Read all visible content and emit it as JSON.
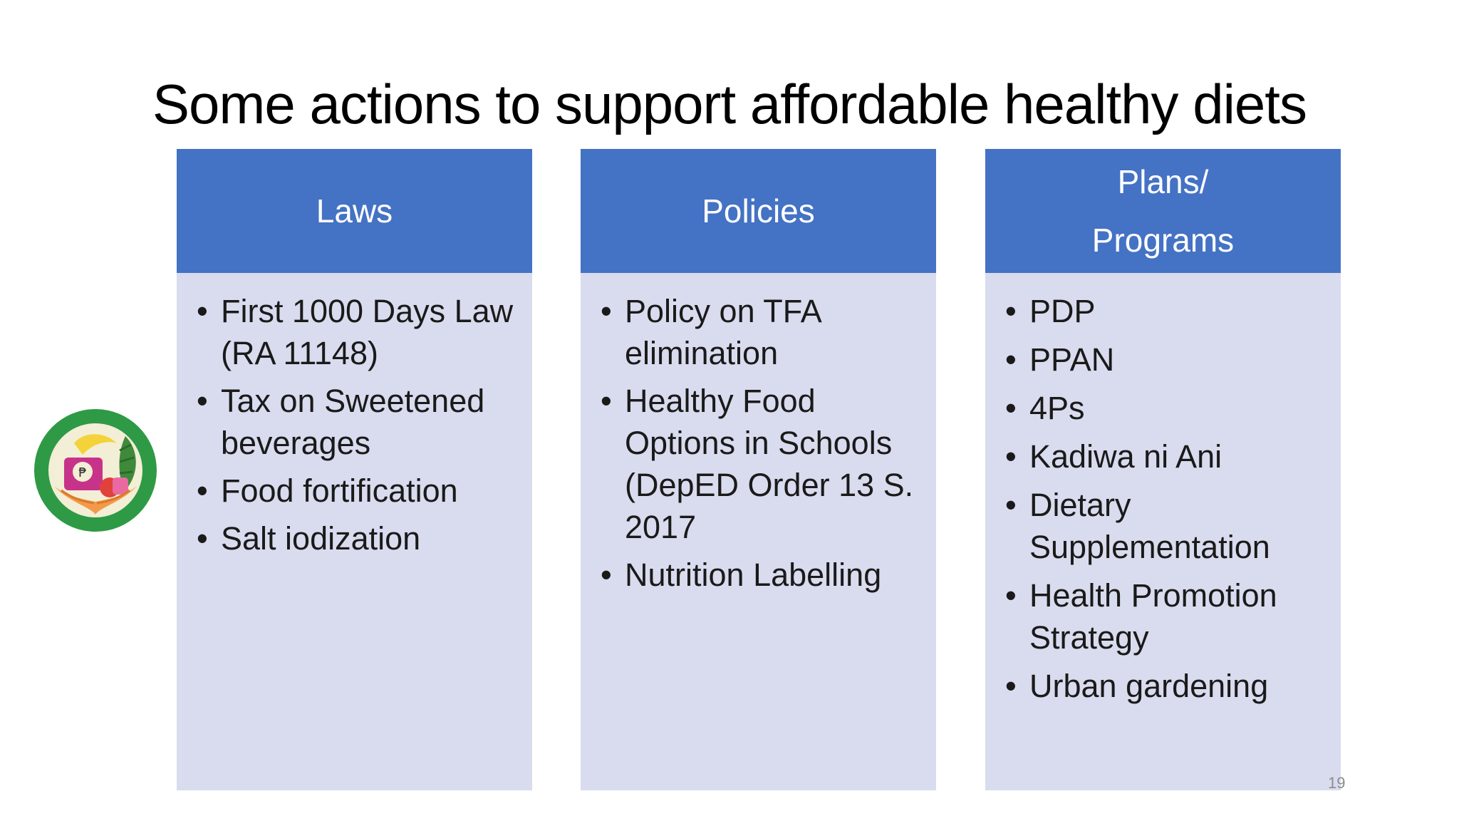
{
  "slide": {
    "title": "Some actions to support affordable healthy diets",
    "page_number": "19"
  },
  "columns": [
    {
      "header": [
        "Laws"
      ],
      "items": [
        "First 1000 Days Law (RA 11148)",
        "Tax on Sweetened beverages",
        "Food fortification",
        "Salt iodization"
      ]
    },
    {
      "header": [
        "Policies"
      ],
      "items": [
        "Policy on TFA elimination",
        "Healthy Food Options in Schools (DepED Order 13 S. 2017",
        "Nutrition Labelling"
      ]
    },
    {
      "header": [
        "Plans/",
        "Programs"
      ],
      "items": [
        "PDP",
        "PPAN",
        "4Ps",
        "Kadiwa ni Ani",
        "Dietary Supplementation",
        "Health Promotion Strategy",
        "Urban gardening"
      ]
    }
  ],
  "logo": {
    "icon": "healthy-food-hands-logo-icon",
    "colors": {
      "ring": "#2e9a45",
      "inner": "#f3eed6",
      "banana": "#f4d33a",
      "hands": "#f39a4a",
      "magenta": "#c8338a",
      "leaves": "#3f8a3a"
    }
  },
  "theme": {
    "header_color": "#4472c4",
    "body_color": "#d9dcee"
  }
}
